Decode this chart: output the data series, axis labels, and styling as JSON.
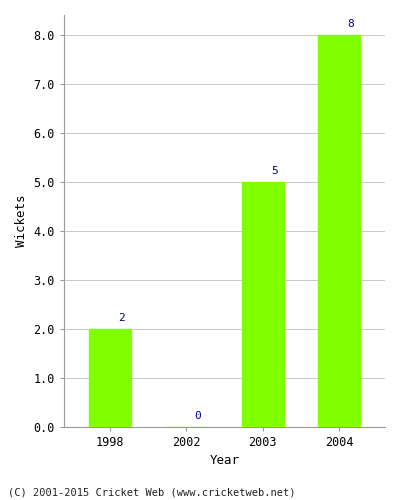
{
  "categories": [
    "1998",
    "2002",
    "2003",
    "2004"
  ],
  "values": [
    2,
    0,
    5,
    8
  ],
  "bar_color": "#7FFF00",
  "bar_edge_color": "#7FFF00",
  "xlabel": "Year",
  "ylabel": "Wickets",
  "ylim": [
    0.0,
    8.4
  ],
  "yticks": [
    0.0,
    1.0,
    2.0,
    3.0,
    4.0,
    5.0,
    6.0,
    7.0,
    8.0
  ],
  "label_color": "#00008B",
  "label_fontsize": 8,
  "axis_label_fontsize": 9,
  "tick_fontsize": 8.5,
  "footer_text": "(C) 2001-2015 Cricket Web (www.cricketweb.net)",
  "footer_fontsize": 7.5,
  "background_color": "#ffffff",
  "grid_color": "#c8c8c8"
}
